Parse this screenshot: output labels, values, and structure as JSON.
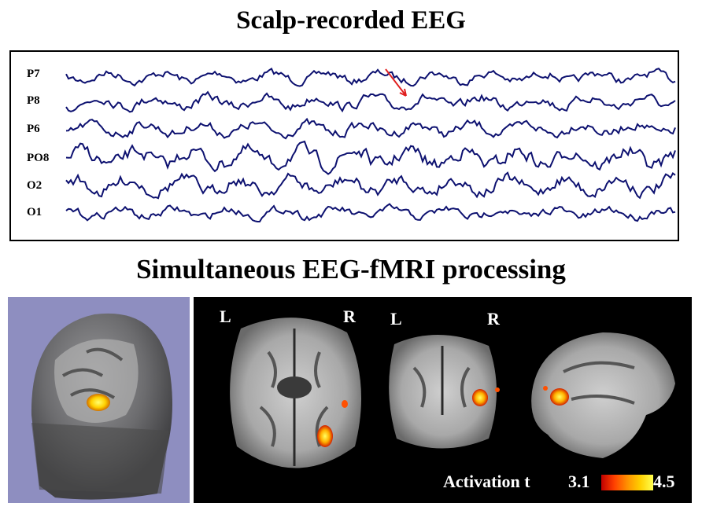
{
  "titles": {
    "top": "Scalp-recorded EEG",
    "middle": "Simultaneous EEG-fMRI processing"
  },
  "eeg": {
    "channels": [
      "P7",
      "P8",
      "P6",
      "PO8",
      "O2",
      "O1"
    ],
    "trace_color": "#0d1170",
    "marker_color": "#e02020"
  },
  "mri": {
    "axial": {
      "left": "L",
      "right": "R"
    },
    "coronal": {
      "left": "L",
      "right": "R"
    },
    "activation_label": "Activation t",
    "scale_min": "3.1",
    "scale_max": "4.5"
  }
}
